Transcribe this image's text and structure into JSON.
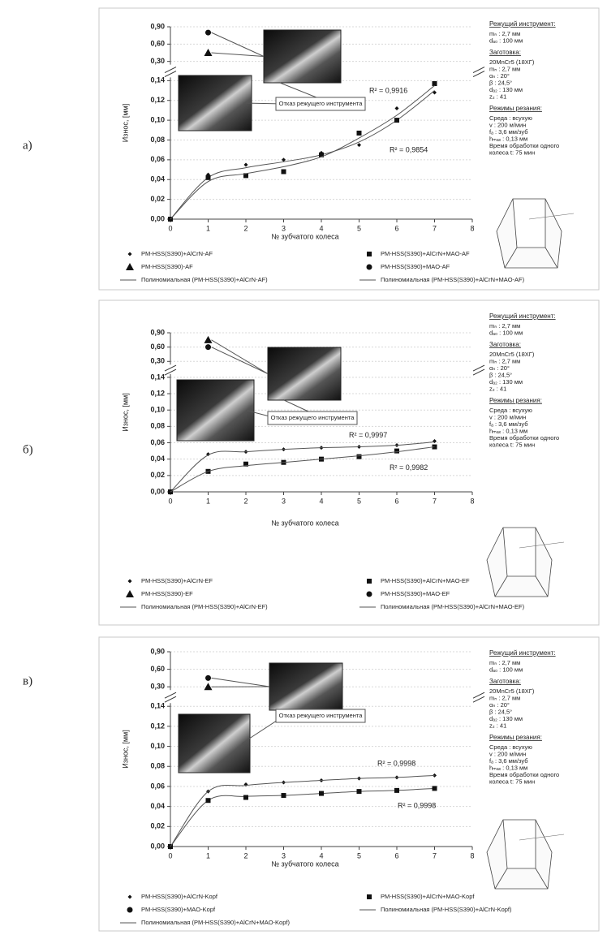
{
  "chart_data": [
    {
      "label": "а)",
      "type": "scatter",
      "ylabel": "Износ, [мм]",
      "xlabel": "№ зубчатого колеса",
      "xlim": [
        0,
        8
      ],
      "xticks": [
        0,
        1,
        2,
        3,
        4,
        5,
        6,
        7,
        8
      ],
      "ylim": [
        0,
        0.9
      ],
      "y_break": [
        0.14,
        0.3
      ],
      "grid": true,
      "yticks": [
        {
          "value": 0,
          "label": "0,00"
        },
        {
          "value": 0.02,
          "label": "0,02"
        },
        {
          "value": 0.04,
          "label": "0,04"
        },
        {
          "value": 0.06,
          "label": "0,06"
        },
        {
          "value": 0.08,
          "label": "0,08"
        },
        {
          "value": 0.1,
          "label": "0,10"
        },
        {
          "value": 0.12,
          "label": "0,12"
        },
        {
          "value": 0.14,
          "label": "0,14"
        },
        {
          "value": 0.3,
          "label": "0,30"
        },
        {
          "value": 0.6,
          "label": "0,60"
        },
        {
          "value": 0.9,
          "label": "0,90"
        }
      ],
      "annotation": "Отказ режущего инструмента",
      "series": [
        {
          "name": "PM-HSS(S390)+AlCrN-AF",
          "marker": "diamond",
          "color": "#111111",
          "x": [
            0,
            1,
            2,
            3,
            4,
            5,
            6,
            7
          ],
          "values": [
            0,
            0.045,
            0.055,
            0.06,
            0.067,
            0.075,
            0.112,
            0.128
          ]
        },
        {
          "name": "PM-HSS(S390)-AF",
          "marker": "triangle",
          "color": "#111111",
          "x": [
            1
          ],
          "values": [
            0.45
          ]
        },
        {
          "name": "Полиномиальная (PM-HSS(S390)+AlCrN-AF)",
          "type": "trend",
          "color": "#555555",
          "r2_label": "R² = 0,9854",
          "x": [
            0,
            1,
            2,
            3,
            4,
            5,
            6,
            7
          ],
          "values": [
            0,
            0.042,
            0.052,
            0.058,
            0.065,
            0.078,
            0.1,
            0.13
          ]
        },
        {
          "name": "PM-HSS(S390)+AlCrN+MAO-AF",
          "marker": "square",
          "color": "#111111",
          "x": [
            0,
            1,
            2,
            3,
            4,
            5,
            6,
            7
          ],
          "values": [
            0,
            0.042,
            0.044,
            0.048,
            0.065,
            0.087,
            0.1,
            0.137
          ]
        },
        {
          "name": "PM-HSS(S390)+MAO-AF",
          "marker": "circle",
          "color": "#111111",
          "x": [
            1
          ],
          "values": [
            0.8
          ]
        },
        {
          "name": "Полиномиальная (PM-HSS(S390)+AlCrN+MAO-AF)",
          "type": "trend",
          "color": "#555555",
          "r2_label": "R² = 0,9916",
          "x": [
            0,
            1,
            2,
            3,
            4,
            5,
            6,
            7
          ],
          "values": [
            0,
            0.038,
            0.046,
            0.053,
            0.063,
            0.082,
            0.105,
            0.135
          ]
        }
      ],
      "specs": [
        {
          "heading": "Режущий инструмент:",
          "lines": [
            "mₙ : 2,7 мм",
            "dₐ₀ : 100 мм"
          ]
        },
        {
          "heading": "Заготовка:",
          "lines": [
            "20MnCr5 (18ХГ)",
            "mₙ : 2,7 мм",
            "αₙ : 20°",
            "β : 24,5°",
            "dₐ₂ : 130 мм",
            "z₂ : 41"
          ]
        },
        {
          "heading": "Режимы резания:",
          "lines": [
            "Среда : всухую",
            "v : 200 м/мин",
            "fₐ : 3,6 мм/зуб",
            "hₘₐₓ : 0,13 мм",
            "Время обработки одного",
            "колеса t: 75 мин"
          ]
        }
      ]
    },
    {
      "label": "б)",
      "type": "scatter",
      "ylabel": "Износ, [мм]",
      "xlabel": "№ зубчатого колеса",
      "xlim": [
        0,
        8
      ],
      "xticks": [
        0,
        1,
        2,
        3,
        4,
        5,
        6,
        7,
        8
      ],
      "ylim": [
        0,
        0.9
      ],
      "y_break": [
        0.14,
        0.3
      ],
      "grid": true,
      "yticks": [
        {
          "value": 0,
          "label": "0,00"
        },
        {
          "value": 0.02,
          "label": "0,02"
        },
        {
          "value": 0.04,
          "label": "0,04"
        },
        {
          "value": 0.06,
          "label": "0,06"
        },
        {
          "value": 0.08,
          "label": "0,08"
        },
        {
          "value": 0.1,
          "label": "0,10"
        },
        {
          "value": 0.12,
          "label": "0,12"
        },
        {
          "value": 0.14,
          "label": "0,14"
        },
        {
          "value": 0.3,
          "label": "0,30"
        },
        {
          "value": 0.6,
          "label": "0,60"
        },
        {
          "value": 0.9,
          "label": "0,90"
        }
      ],
      "annotation": "Отказ режущего инструмента",
      "series": [
        {
          "name": "PM-HSS(S390)+AlCrN-EF",
          "marker": "diamond",
          "color": "#111111",
          "x": [
            0,
            1,
            2,
            3,
            4,
            5,
            6,
            7
          ],
          "values": [
            0,
            0.046,
            0.049,
            0.052,
            0.054,
            0.055,
            0.057,
            0.062
          ]
        },
        {
          "name": "PM-HSS(S390)-EF",
          "marker": "triangle",
          "color": "#111111",
          "x": [
            1
          ],
          "values": [
            0.75
          ]
        },
        {
          "name": "Полиномиальная (PM-HSS(S390)+AlCrN-EF)",
          "type": "trend",
          "color": "#555555",
          "r2_label": "R² = 0,9997",
          "x": [
            0,
            1,
            2,
            3,
            4,
            5,
            6,
            7
          ],
          "values": [
            0,
            0.045,
            0.049,
            0.052,
            0.054,
            0.055,
            0.057,
            0.061
          ]
        },
        {
          "name": "PM-HSS(S390)+AlCrN+MAO-EF",
          "marker": "square",
          "color": "#111111",
          "x": [
            0,
            1,
            2,
            3,
            4,
            5,
            6,
            7
          ],
          "values": [
            0,
            0.025,
            0.034,
            0.036,
            0.04,
            0.043,
            0.05,
            0.055
          ]
        },
        {
          "name": "PM-HSS(S390)+MAO-EF",
          "marker": "circle",
          "color": "#111111",
          "x": [
            1
          ],
          "values": [
            0.6
          ]
        },
        {
          "name": "Полиномиальная (PM-HSS(S390)+AlCrN+MAO-EF)",
          "type": "trend",
          "color": "#555555",
          "r2_label": "R² = 0,9982",
          "x": [
            0,
            1,
            2,
            3,
            4,
            5,
            6,
            7
          ],
          "values": [
            0,
            0.025,
            0.032,
            0.036,
            0.04,
            0.044,
            0.049,
            0.055
          ]
        }
      ],
      "specs": [
        {
          "heading": "Режущий инструмент:",
          "lines": [
            "mₙ : 2,7 мм",
            "dₐ₀ : 100 мм"
          ]
        },
        {
          "heading": "Заготовка:",
          "lines": [
            "20MnCr5 (18ХГ)",
            "mₙ : 2,7 мм",
            "αₙ : 20°",
            "β : 24,5°",
            "dₐ₂ : 130 мм",
            "z₂ : 41"
          ]
        },
        {
          "heading": "Режимы резания:",
          "lines": [
            "Среда : всухую",
            "v : 200 м/мин",
            "fₐ : 3,6 мм/зуб",
            "hₘₐₓ : 0,13 мм",
            "Время обработки одного",
            "колеса t: 75 мин"
          ]
        }
      ]
    },
    {
      "label": "в)",
      "type": "scatter",
      "ylabel": "Износ, [мм]",
      "xlabel": "№ зубчатого колеса",
      "xlim": [
        0,
        8
      ],
      "xticks": [
        0,
        1,
        2,
        3,
        4,
        5,
        6,
        7,
        8
      ],
      "ylim": [
        0,
        0.9
      ],
      "y_break": [
        0.14,
        0.3
      ],
      "grid": true,
      "yticks": [
        {
          "value": 0,
          "label": "0,00"
        },
        {
          "value": 0.02,
          "label": "0,02"
        },
        {
          "value": 0.04,
          "label": "0,04"
        },
        {
          "value": 0.06,
          "label": "0,06"
        },
        {
          "value": 0.08,
          "label": "0,08"
        },
        {
          "value": 0.1,
          "label": "0,10"
        },
        {
          "value": 0.12,
          "label": "0,12"
        },
        {
          "value": 0.14,
          "label": "0,14"
        },
        {
          "value": 0.3,
          "label": "0,30"
        },
        {
          "value": 0.6,
          "label": "0,60"
        },
        {
          "value": 0.9,
          "label": "0,90"
        }
      ],
      "annotation": "Отказ режущего инструмента",
      "series": [
        {
          "name": "PM-HSS(S390)+AlCrN-Kopf",
          "marker": "diamond",
          "color": "#111111",
          "x": [
            0,
            1,
            2,
            3,
            4,
            5,
            6,
            7
          ],
          "values": [
            0,
            0.055,
            0.062,
            0.064,
            0.066,
            0.068,
            0.069,
            0.071
          ]
        },
        {
          "name": "PM-HSS(S390)+MAO-Kopf",
          "marker": "circle",
          "color": "#111111",
          "x": [
            1
          ],
          "values": [
            0.45
          ]
        },
        {
          "name": "Полиномиальная (PM-HSS(S390)+AlCrN+MAO-Kopf)",
          "type": "trend",
          "color": "#555555",
          "r2_label": "R² = 0,9998",
          "x": [
            0,
            1,
            2,
            3,
            4,
            5,
            6,
            7
          ],
          "values": [
            0,
            0.046,
            0.05,
            0.051,
            0.053,
            0.055,
            0.056,
            0.058
          ]
        },
        {
          "name": "PM-HSS(S390)+AlCrN+MAO-Kopf",
          "marker": "square",
          "color": "#111111",
          "x": [
            0,
            1,
            2,
            3,
            4,
            5,
            6,
            7
          ],
          "values": [
            0,
            0.046,
            0.049,
            0.051,
            0.053,
            0.055,
            0.056,
            0.058
          ]
        },
        {
          "name": "Полиномиальная (PM-HSS(S390)+AlCrN-Kopf)",
          "type": "trend",
          "color": "#555555",
          "r2_label": "R² = 0,9998",
          "x": [
            0,
            1,
            2,
            3,
            4,
            5,
            6,
            7
          ],
          "values": [
            0,
            0.055,
            0.061,
            0.064,
            0.066,
            0.068,
            0.069,
            0.071
          ]
        },
        {
          "marker": "triangle",
          "color": "#111111",
          "x": [
            1
          ],
          "values": [
            0.3
          ]
        }
      ],
      "specs": [
        {
          "heading": "Режущий инструмент:",
          "lines": [
            "mₙ : 2,7 мм",
            "dₐ₀ : 100 мм"
          ]
        },
        {
          "heading": "Заготовка:",
          "lines": [
            "20MnCr5 (18ХГ)",
            "mₙ : 2,7 мм",
            "αₙ : 20°",
            "β : 24,5°",
            "dₐ₂ : 130 мм",
            "z₂ : 41"
          ]
        },
        {
          "heading": "Режимы резания:",
          "lines": [
            "Среда : всухую",
            "v : 200 м/мин",
            "fₐ : 3,6 мм/зуб",
            "hₘₐₓ : 0,13 мм",
            "Время обработки одного",
            "колеса t: 75 мин"
          ]
        }
      ]
    }
  ]
}
